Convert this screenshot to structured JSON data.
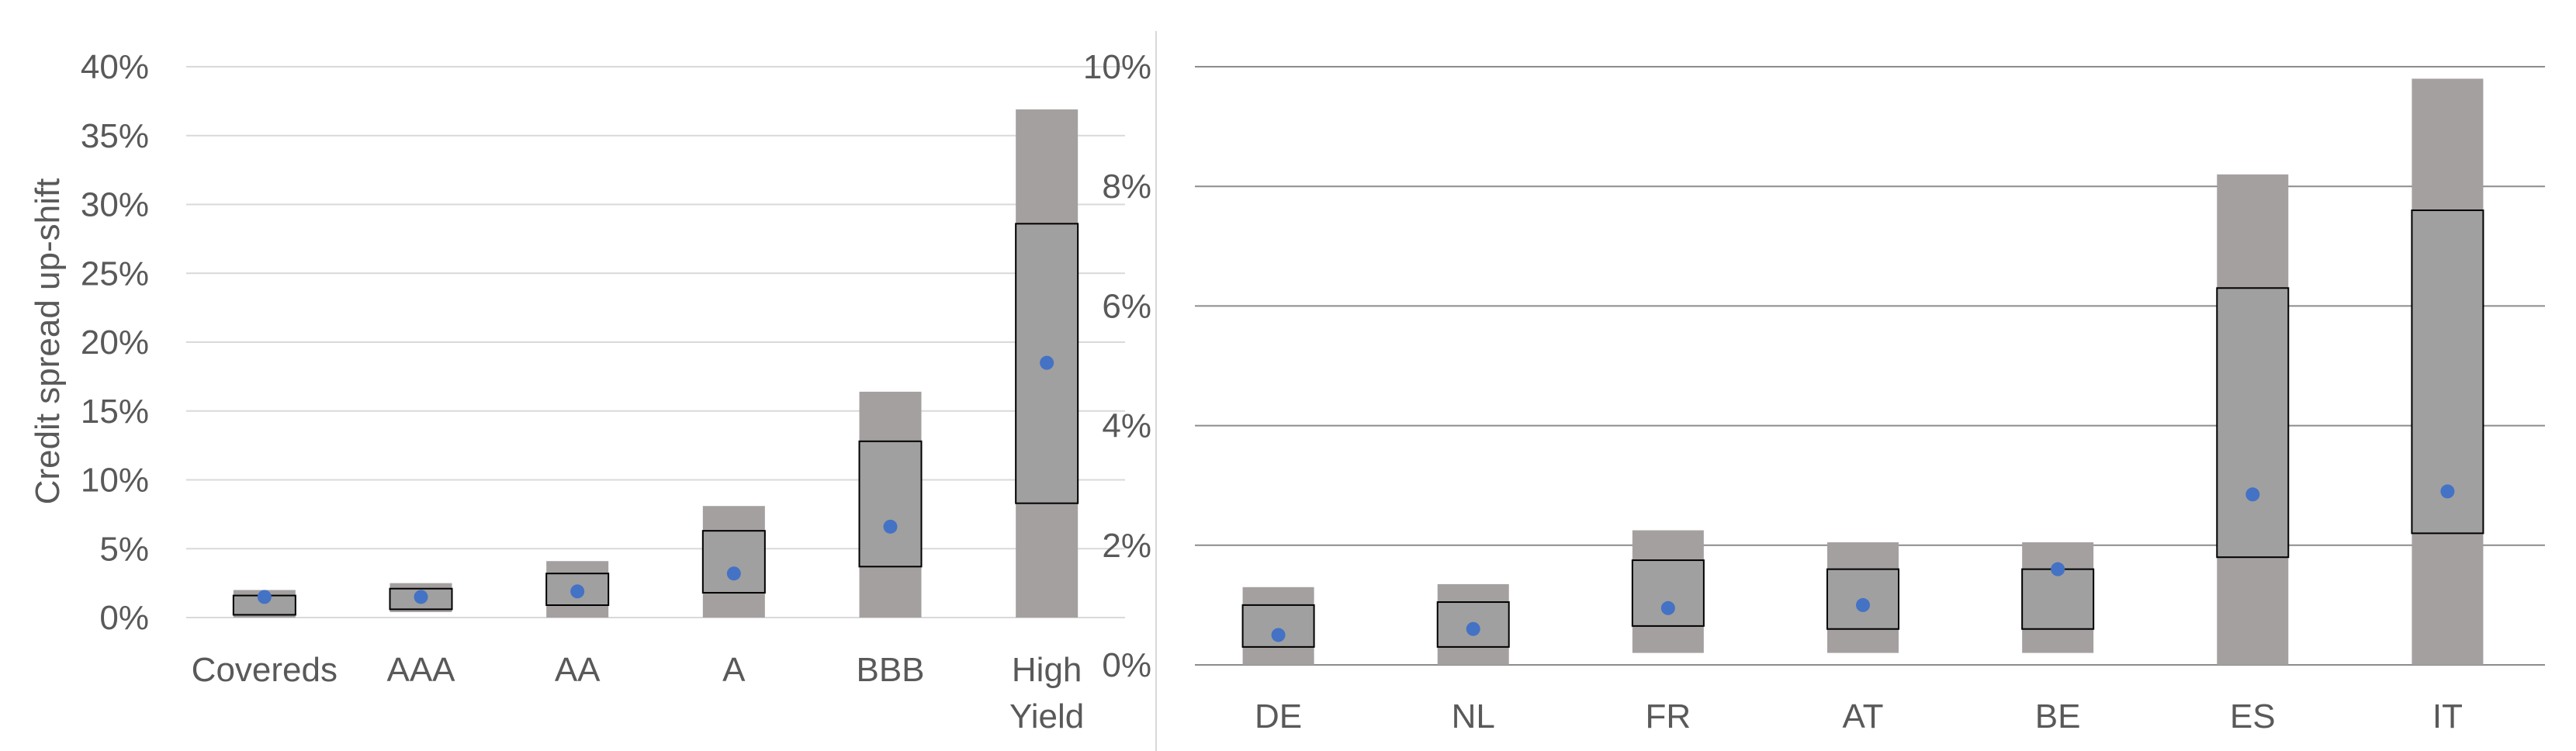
{
  "chart_data": [
    {
      "type": "box",
      "title": "",
      "xlabel": "",
      "ylabel": "Credit spread up-shift",
      "ylim": [
        0,
        40
      ],
      "yticks": [
        "0%",
        "5%",
        "10%",
        "15%",
        "20%",
        "25%",
        "30%",
        "35%",
        "40%"
      ],
      "y_unit": "%",
      "grid": true,
      "categories": [
        [
          "Covereds"
        ],
        [
          "AAA"
        ],
        [
          "AA"
        ],
        [
          "A"
        ],
        [
          "BBB"
        ],
        [
          "High",
          "Yield"
        ]
      ],
      "whisker_low": [
        0.0,
        0.4,
        0.0,
        0.0,
        0.0,
        0.0
      ],
      "q1": [
        0.2,
        0.6,
        0.9,
        1.8,
        3.7,
        8.3
      ],
      "q3": [
        1.6,
        2.1,
        3.2,
        6.3,
        12.8,
        28.6
      ],
      "whisker_high": [
        2.0,
        2.5,
        4.1,
        8.1,
        16.4,
        36.9
      ],
      "mean": [
        1.5,
        1.5,
        1.9,
        3.2,
        6.6,
        18.5
      ]
    },
    {
      "type": "box",
      "title": "",
      "xlabel": "",
      "ylabel": "",
      "ylim": [
        0,
        10
      ],
      "yticks": [
        "0%",
        "2%",
        "4%",
        "6%",
        "8%",
        "10%"
      ],
      "y_unit": "%",
      "grid": true,
      "categories": [
        [
          "DE"
        ],
        [
          "NL"
        ],
        [
          "FR"
        ],
        [
          "AT"
        ],
        [
          "BE"
        ],
        [
          "ES"
        ],
        [
          "IT"
        ]
      ],
      "whisker_low": [
        0.0,
        0.0,
        0.2,
        0.2,
        0.2,
        0.0,
        0.0
      ],
      "q1": [
        0.3,
        0.3,
        0.65,
        0.6,
        0.6,
        1.8,
        2.2
      ],
      "q3": [
        1.0,
        1.05,
        1.75,
        1.6,
        1.6,
        6.3,
        7.6
      ],
      "whisker_high": [
        1.3,
        1.35,
        2.25,
        2.05,
        2.05,
        8.2,
        9.8
      ],
      "mean": [
        0.5,
        0.6,
        0.95,
        1.0,
        1.6,
        2.85,
        2.9
      ]
    }
  ],
  "colors": {
    "whisker_range": "#a5a0a0",
    "box_fill": "#a0a0a0",
    "box_stroke": "#000000",
    "mean_marker": "#4472c4",
    "gridline_left": "#d9d9d9",
    "gridline_right": "#8c8c8c",
    "axis_text": "#595959",
    "separator": "#d9d9d9"
  }
}
